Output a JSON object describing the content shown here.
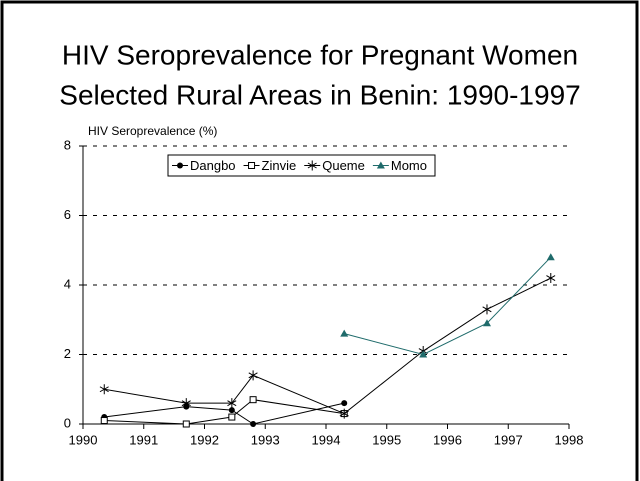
{
  "chart_data": {
    "type": "line",
    "title": [
      "HIV Seroprevalence for Pregnant Women",
      "Selected Rural Areas in Benin:  1990-1997"
    ],
    "y_label": "HIV Seroprevalence (%)",
    "xlim": [
      1990,
      1998
    ],
    "xticks": [
      1990,
      1991,
      1992,
      1993,
      1994,
      1995,
      1996,
      1997,
      1998
    ],
    "ylim": [
      0,
      8
    ],
    "yticks": [
      0,
      2,
      4,
      6,
      8
    ],
    "grid": true,
    "legend": "top",
    "series": [
      {
        "name": "Dangbo",
        "color": "#000000",
        "marker": "circle",
        "x": [
          1990.35,
          1991.7,
          1992.45,
          1992.8,
          1994.3
        ],
        "values": [
          0.2,
          0.5,
          0.4,
          0,
          0.6
        ]
      },
      {
        "name": "Zinvie",
        "color": "#000000",
        "marker": "square",
        "x": [
          1990.35,
          1991.7,
          1992.45,
          1992.8,
          1994.3
        ],
        "values": [
          0.1,
          0,
          0.2,
          0.7,
          0.3
        ]
      },
      {
        "name": "Queme",
        "color": "#000000",
        "marker": "star",
        "x": [
          1990.35,
          1991.7,
          1992.45,
          1992.8,
          1994.3,
          1995.6,
          1996.65,
          1997.7
        ],
        "values": [
          1.0,
          0.6,
          0.6,
          1.4,
          0.3,
          2.1,
          3.3,
          4.2
        ]
      },
      {
        "name": "Momo",
        "color": "#1f6b6b",
        "marker": "triangle",
        "x": [
          1994.3,
          1995.6,
          1996.65,
          1997.7
        ],
        "values": [
          2.6,
          2.0,
          2.9,
          4.8
        ]
      }
    ]
  }
}
